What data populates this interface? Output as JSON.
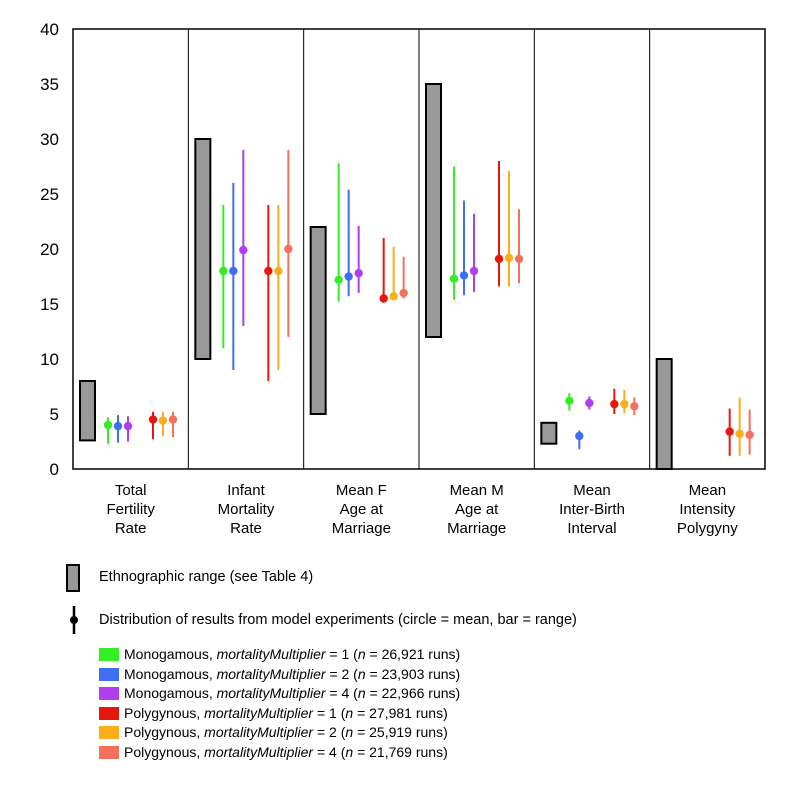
{
  "chart_data": {
    "type": "range_plot",
    "ylim": [
      0,
      40
    ],
    "yticks": [
      "0",
      "5",
      "10",
      "15",
      "20",
      "25",
      "30",
      "35",
      "40"
    ],
    "categories": [
      [
        "Total",
        "Fertility",
        "Rate"
      ],
      [
        "Infant",
        "Mortality",
        "Rate"
      ],
      [
        "Mean F",
        "Age at",
        "Marriage"
      ],
      [
        "Mean M",
        "Age at",
        "Marriage"
      ],
      [
        "Mean",
        "Inter-Birth",
        "Interval"
      ],
      [
        "Mean",
        "Intensity",
        "Polygyny"
      ]
    ],
    "ethnographic_range": [
      [
        2.6,
        8
      ],
      [
        10,
        30
      ],
      [
        5,
        22
      ],
      [
        12,
        35
      ],
      [
        2.3,
        4.2
      ],
      [
        0,
        10
      ]
    ],
    "series": [
      {
        "name": "Monogamous, mortalityMultiplier = 1 (n = 26,921 runs)",
        "color": "#33ee22",
        "mean": [
          4.0,
          18.0,
          17.2,
          17.3,
          6.2,
          null
        ],
        "range": [
          [
            2.3,
            4.7
          ],
          [
            11,
            24
          ],
          [
            15.2,
            27.8
          ],
          [
            15.4,
            27.5
          ],
          [
            5.3,
            6.9
          ],
          null
        ]
      },
      {
        "name": "Monogamous, mortalityMultiplier = 2 (n = 23,903 runs)",
        "color": "#3d6ff2",
        "mean": [
          3.9,
          18.0,
          17.5,
          17.6,
          3.0,
          null
        ],
        "range": [
          [
            2.4,
            4.9
          ],
          [
            9,
            26
          ],
          [
            15.7,
            25.4
          ],
          [
            15.8,
            24.4
          ],
          [
            1.8,
            3.5
          ],
          null
        ]
      },
      {
        "name": "Monogamous, mortalityMultiplier = 4 (n = 22,966 runs)",
        "color": "#b03ef0",
        "mean": [
          3.9,
          19.9,
          17.8,
          18.0,
          6.0,
          null
        ],
        "range": [
          [
            2.5,
            4.8
          ],
          [
            13,
            29
          ],
          [
            16.0,
            22.1
          ],
          [
            16.1,
            23.2
          ],
          [
            5.4,
            6.6
          ],
          null
        ]
      },
      {
        "name": "Polygynous, mortalityMultiplier = 1 (n = 27,981 runs)",
        "color": "#e8170e",
        "mean": [
          4.5,
          18.0,
          15.5,
          19.1,
          5.9,
          3.4
        ],
        "range": [
          [
            2.7,
            5.2
          ],
          [
            8,
            24
          ],
          [
            15.3,
            21.0
          ],
          [
            16.6,
            28.0
          ],
          [
            5.0,
            7.3
          ],
          [
            1.2,
            5.5
          ]
        ]
      },
      {
        "name": "Polygynous, mortalityMultiplier = 2 (n = 25,919 runs)",
        "color": "#fbae1a",
        "mean": [
          4.4,
          18.0,
          15.7,
          19.2,
          5.9,
          3.2
        ],
        "range": [
          [
            3.0,
            5.2
          ],
          [
            9,
            24
          ],
          [
            15.4,
            20.2
          ],
          [
            16.6,
            27.1
          ],
          [
            5.1,
            7.2
          ],
          [
            1.2,
            6.5
          ]
        ]
      },
      {
        "name": "Polygynous, mortalityMultiplier = 4 (n = 21,769 runs)",
        "color": "#f5705a",
        "mean": [
          4.5,
          20.0,
          16.0,
          19.1,
          5.7,
          3.1
        ],
        "range": [
          [
            2.9,
            5.2
          ],
          [
            12,
            29
          ],
          [
            15.5,
            19.3
          ],
          [
            16.9,
            23.6
          ],
          [
            4.9,
            6.5
          ],
          [
            1.3,
            5.4
          ]
        ]
      }
    ]
  },
  "legend": {
    "ethnographic_label": "Ethnographic range (see Table 4)",
    "distribution_label": "Distribution of results from model experiments (circle = mean, bar = range)",
    "items": [
      {
        "prefix": "Monogamous, ",
        "param": "mortalityMultiplier",
        "mid": " = 1 (",
        "n": "n",
        "suffix": " = 26,921 runs)",
        "color": "#33ee22"
      },
      {
        "prefix": "Monogamous, ",
        "param": "mortalityMultiplier",
        "mid": " = 2 (",
        "n": "n",
        "suffix": " = 23,903 runs)",
        "color": "#3d6ff2"
      },
      {
        "prefix": "Monogamous, ",
        "param": "mortalityMultiplier",
        "mid": " = 4 (",
        "n": "n",
        "suffix": " = 22,966 runs)",
        "color": "#b03ef0"
      },
      {
        "prefix": "Polygynous, ",
        "param": "mortalityMultiplier",
        "mid": " = 1 (",
        "n": "n",
        "suffix": " = 27,981 runs)",
        "color": "#e8170e"
      },
      {
        "prefix": "Polygynous, ",
        "param": "mortalityMultiplier",
        "mid": " = 2 (",
        "n": "n",
        "suffix": " = 25,919 runs)",
        "color": "#fbae1a"
      },
      {
        "prefix": "Polygynous, ",
        "param": "mortalityMultiplier",
        "mid": " = 4 (",
        "n": "n",
        "suffix": " = 21,769 runs)",
        "color": "#f5705a"
      }
    ]
  }
}
